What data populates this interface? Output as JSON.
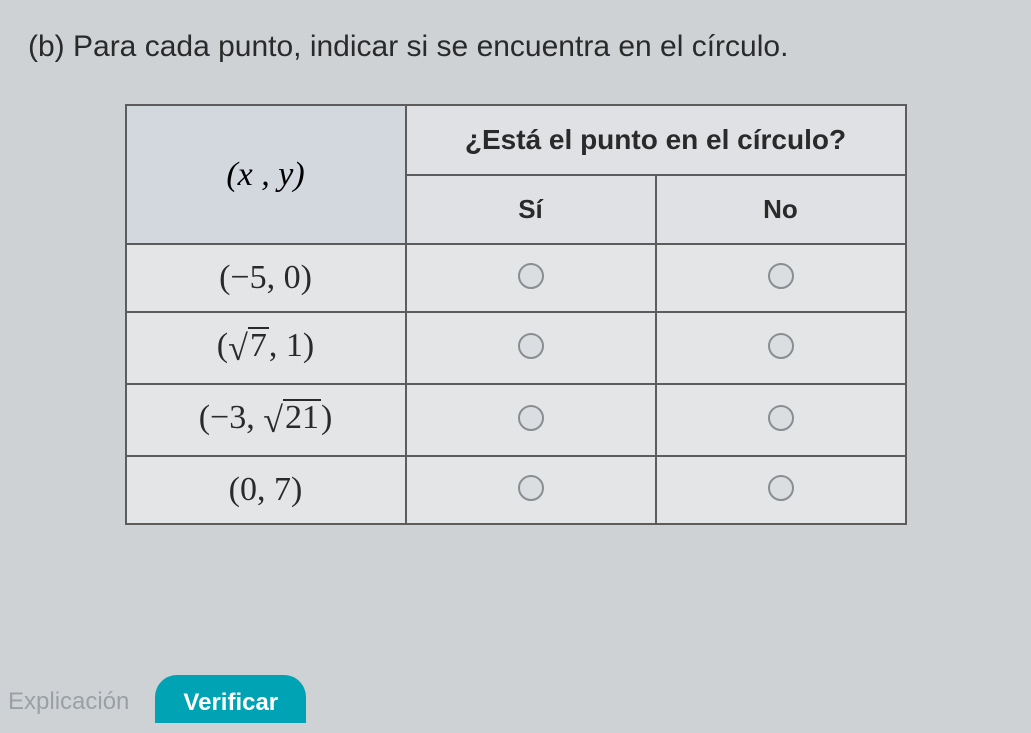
{
  "question": "(b) Para cada punto, indicar si se encuentra en el círculo.",
  "headers": {
    "xy": "(x , y)",
    "main": "¿Está el punto en el círculo?",
    "yes": "Sí",
    "no": "No"
  },
  "points": [
    {
      "display": "(−5, 0)",
      "type": "plain"
    },
    {
      "display_open": "(",
      "pre": "",
      "radicand": "7",
      "post": ", 1)",
      "type": "sqrt"
    },
    {
      "display_open": "(−3, ",
      "pre": "",
      "radicand": "21",
      "post": ")",
      "type": "sqrt"
    },
    {
      "display": "(0, 7)",
      "type": "plain"
    }
  ],
  "buttons": {
    "explain": "Explicación",
    "verify": "Verificar"
  },
  "colors": {
    "page_bg": "#ced2d5",
    "table_bg": "#e1e3e5",
    "border": "#5c5c5c",
    "header_bg": "#d3d8de",
    "radio_border": "#8a8e92",
    "verify_bg": "#00a3b4",
    "verify_text": "#ffffff",
    "explain_text": "#9aa0a6"
  }
}
